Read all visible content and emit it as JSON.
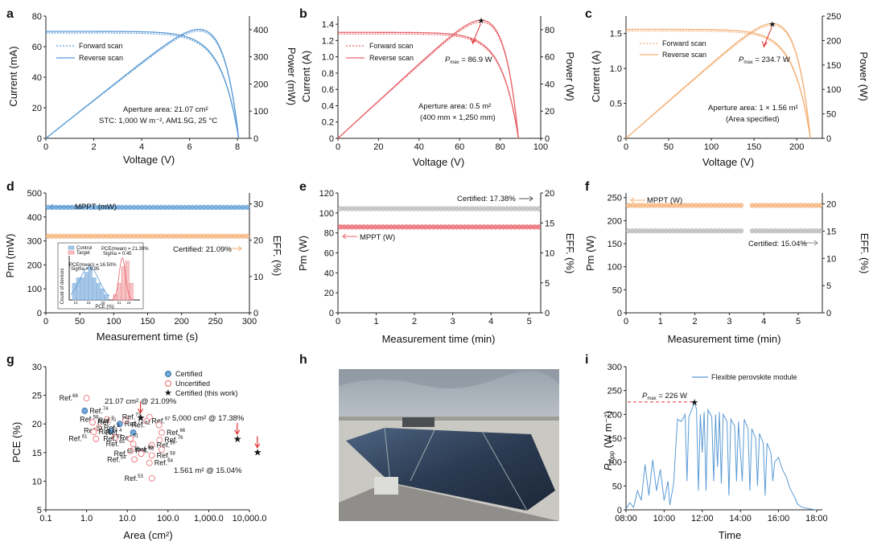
{
  "colors": {
    "blue": "#5b9bd5",
    "red": "#e8636a",
    "orange": "#f4b076",
    "gray": "#b8b8b8",
    "arrow_red": "#e03030",
    "axis": "#222222",
    "cert_fill": "#6fa8dc",
    "sky": "#c6ccd2",
    "wall": "#c7c6c1",
    "panel": "#2e3e54"
  },
  "panels": {
    "a": {
      "letter": "a",
      "xlabel": "Voltage (V)",
      "ylabel": "Current (mA)",
      "y2label": "Power (mW)",
      "xlim": [
        0,
        8.5
      ],
      "ylim": [
        0,
        80
      ],
      "y2lim": [
        0,
        450
      ],
      "xticks": [
        "0",
        "2",
        "4",
        "6",
        "8"
      ],
      "yticks": [
        "0",
        "20",
        "40",
        "60",
        "80"
      ],
      "y2ticks": [
        "0",
        "100",
        "200",
        "300",
        "400"
      ],
      "legend": [
        "Forward scan",
        "Reverse scan"
      ],
      "ann1": "Aperture area: 21.07 cm²",
      "ann2": "STC: 1,000 W m⁻², AM1.5G, 25 °C",
      "isc": 70,
      "voc": 8.05,
      "vmp": 6.8,
      "imp": 59
    },
    "b": {
      "letter": "b",
      "xlabel": "Voltage (V)",
      "ylabel": "Current (A)",
      "y2label": "Power (W)",
      "xlim": [
        0,
        100
      ],
      "ylim": [
        0,
        1.5
      ],
      "y2lim": [
        0,
        90
      ],
      "xticks": [
        "0",
        "20",
        "40",
        "60",
        "80",
        "100"
      ],
      "yticks": [
        "0",
        "0.2",
        "0.4",
        "0.6",
        "0.8",
        "1.0",
        "1.2",
        "1.4"
      ],
      "y2ticks": [
        "0",
        "20",
        "40",
        "60",
        "80"
      ],
      "legend": [
        "Forward scan",
        "Reverse scan"
      ],
      "pmax_p": "P",
      "pmax_sub": "max",
      "pmax_val": " = 86.9 W",
      "ann1": "Aperture area: 0.5 m²",
      "ann2": "(400 mm × 1,250 mm)",
      "isc": 1.3,
      "voc": 89,
      "vmp": 73,
      "pmax": 86.9
    },
    "c": {
      "letter": "c",
      "xlabel": "Voltage (V)",
      "ylabel": "Current (A)",
      "y2label": "Power (W)",
      "xlim": [
        0,
        230
      ],
      "ylim": [
        0,
        1.75
      ],
      "y2lim": [
        0,
        250
      ],
      "xticks": [
        "0",
        "50",
        "100",
        "150",
        "200"
      ],
      "yticks": [
        "0",
        "0.5",
        "1.0",
        "1.5"
      ],
      "y2ticks": [
        "0",
        "50",
        "100",
        "150",
        "200",
        "250"
      ],
      "legend": [
        "Forward scan",
        "Reverse scan"
      ],
      "pmax_p": "P",
      "pmax_sub": "max",
      "pmax_val": " = 234.7 W",
      "ann1": "Aperture area: 1 × 1.56 m²",
      "ann2": "(Area specified)",
      "isc": 1.56,
      "voc": 216,
      "vmp": 170,
      "pmax": 234.7
    },
    "d": {
      "letter": "d",
      "xlabel": "Measurement time (s)",
      "ylabel": "Pm (mW)",
      "y2label": "EFF. (%)",
      "xlim": [
        0,
        300
      ],
      "ylim": [
        0,
        500
      ],
      "y2lim": [
        0,
        33
      ],
      "xticks": [
        "0",
        "50",
        "100",
        "150",
        "200",
        "250",
        "300"
      ],
      "yticks": [
        "0",
        "100",
        "200",
        "300",
        "400",
        "500"
      ],
      "y2ticks": [
        "0",
        "10",
        "20",
        "30"
      ],
      "mppt_label": "MPPT (mW)",
      "cert_label": "Certified: 21.09%",
      "mppt_value": 440,
      "eff_value": 21.09
    },
    "d_inset": {
      "legend": [
        "Control",
        "Target"
      ],
      "stat_target": "PCE(mean) = 21.39%",
      "stat_target2": "Sigma = 0.45",
      "stat_control": "PCE(mean) = 16.50%",
      "stat_control2": "Sigma = 0.95",
      "ylabel": "Count of devices",
      "xlabel": "PCE (%)",
      "xticks": [
        "10",
        "15",
        "20",
        "21",
        "22"
      ],
      "control_counts": [
        3,
        4,
        4,
        5,
        6,
        4,
        3,
        2,
        1
      ],
      "target_counts": [
        1,
        3,
        6,
        7,
        3
      ]
    },
    "e": {
      "letter": "e",
      "xlabel": "Measurement time (min)",
      "ylabel": "Pm (W)",
      "y2label": "EFF. (%)",
      "xlim": [
        0,
        5.3
      ],
      "ylim": [
        0,
        120
      ],
      "y2lim": [
        0,
        20
      ],
      "xticks": [
        "0",
        "1",
        "2",
        "3",
        "4",
        "5"
      ],
      "yticks": [
        "0",
        "20",
        "40",
        "60",
        "80",
        "100",
        "120"
      ],
      "y2ticks": [
        "0",
        "5",
        "10",
        "15",
        "20"
      ],
      "mppt_label": "MPPT (W)",
      "cert_label": "Certified: 17.38%",
      "mppt_value": 86,
      "eff_value": 17.38
    },
    "f": {
      "letter": "f",
      "xlabel": "Measurement time (min)",
      "ylabel": "Pm (W)",
      "y2label": "EFF. (%)",
      "xlim": [
        0,
        5.7
      ],
      "ylim": [
        0,
        260
      ],
      "y2lim": [
        0,
        22
      ],
      "xticks": [
        "0",
        "1",
        "2",
        "3",
        "4",
        "5"
      ],
      "yticks": [
        "0",
        "50",
        "100",
        "150",
        "200",
        "250"
      ],
      "y2ticks": [
        "0",
        "5",
        "10",
        "15",
        "20"
      ],
      "mppt_label": "MPPT (W)",
      "cert_label": "Certified: 15.04%",
      "mppt_value": 233,
      "eff_value": 15.04
    },
    "g": {
      "letter": "g",
      "xlabel": "Area (cm²)",
      "ylabel": "PCE (%)",
      "xticks": [
        "0.1",
        "1.0",
        "10.0",
        "100.0",
        "1,000.0",
        "10,000.0"
      ],
      "yticks": [
        "5",
        "10",
        "15",
        "20",
        "25",
        "30"
      ],
      "legend": [
        "Certified",
        "Uncertified",
        "Certified (this work)"
      ],
      "ann1": "21.07 cm² @ 21.09%",
      "ann2": "5,000 cm² @ 17.38%",
      "ann3": "1.561 m² @ 15.04%",
      "ref_prefix": "Ref.",
      "refs": [
        {
          "n": "68",
          "x": 1.0,
          "y": 24.5,
          "c": false
        },
        {
          "n": "74",
          "x": 0.9,
          "y": 22.3,
          "c": true
        },
        {
          "n": "58",
          "x": 3.2,
          "y": 20.8,
          "c": false
        },
        {
          "n": "70",
          "x": 1.4,
          "y": 20.3,
          "c": false
        },
        {
          "n": "7",
          "x": 9.0,
          "y": 20.6,
          "c": false
        },
        {
          "n": "72",
          "x": 6.5,
          "y": 20.0,
          "c": true
        },
        {
          "n": "73",
          "x": 35,
          "y": 21.2,
          "c": false
        },
        {
          "n": "67",
          "x": 30,
          "y": 20.5,
          "c": false
        },
        {
          "n": "62",
          "x": 60,
          "y": 19.8,
          "c": false
        },
        {
          "n": "3",
          "x": 2.0,
          "y": 19.3,
          "c": false
        },
        {
          "n": "53",
          "x": 4.0,
          "y": 18.8,
          "c": true
        },
        {
          "n": "52",
          "x": 1.5,
          "y": 18.6,
          "c": false
        },
        {
          "n": "4",
          "x": 14,
          "y": 18.5,
          "c": true
        },
        {
          "n": "66",
          "x": 70,
          "y": 18.5,
          "c": false
        },
        {
          "n": "61",
          "x": 1.7,
          "y": 17.4,
          "c": false
        },
        {
          "n": "51",
          "x": 5.0,
          "y": 17.6,
          "c": false
        },
        {
          "n": "57",
          "x": 12,
          "y": 17.4,
          "c": false
        },
        {
          "n": "76",
          "x": 62,
          "y": 17.2,
          "c": false
        },
        {
          "n": "65",
          "x": 14,
          "y": 16.5,
          "c": false
        },
        {
          "n": "59",
          "x": 40,
          "y": 16.3,
          "c": false
        },
        {
          "n": "60",
          "x": 70,
          "y": 15.5,
          "c": false
        },
        {
          "n": "63",
          "x": 12,
          "y": 15.3,
          "c": false
        },
        {
          "n": "55",
          "x": 22,
          "y": 14.8,
          "c": false
        },
        {
          "n": "58",
          "x": 40,
          "y": 14.5,
          "c": false
        },
        {
          "n": "54",
          "x": 15,
          "y": 13.8,
          "c": false
        },
        {
          "n": "64",
          "x": 35,
          "y": 13.2,
          "c": false
        },
        {
          "n": "53",
          "x": 40,
          "y": 10.5,
          "c": false
        }
      ],
      "this_work": [
        {
          "x": 21.07,
          "y": 21.09
        },
        {
          "x": 5000,
          "y": 17.38
        },
        {
          "x": 15610,
          "y": 15.04
        }
      ]
    },
    "h": {
      "letter": "h"
    },
    "i": {
      "letter": "i",
      "xlabel": "Time",
      "ylabel_p": "P",
      "ylabel_sub": "mpp",
      "ylabel_unit": " (W m⁻²)",
      "legend": "Flexible perovskite module",
      "pmax_p": "P",
      "pmax_sub": "max",
      "pmax_val": " = 226 W",
      "xticks": [
        "08:00",
        "10:00",
        "12:00",
        "14:00",
        "16:00",
        "18:00"
      ],
      "yticks": [
        "0",
        "50",
        "100",
        "150",
        "200",
        "250",
        "300"
      ],
      "xlim": [
        8,
        18.3
      ],
      "ylim": [
        0,
        300
      ],
      "series": [
        [
          8.0,
          2
        ],
        [
          8.2,
          15
        ],
        [
          8.4,
          5
        ],
        [
          8.6,
          40
        ],
        [
          8.8,
          20
        ],
        [
          9.0,
          95
        ],
        [
          9.2,
          30
        ],
        [
          9.4,
          105
        ],
        [
          9.6,
          40
        ],
        [
          9.8,
          85
        ],
        [
          10.0,
          20
        ],
        [
          10.2,
          60
        ],
        [
          10.3,
          10
        ],
        [
          10.5,
          55
        ],
        [
          10.7,
          190
        ],
        [
          10.9,
          185
        ],
        [
          11.1,
          200
        ],
        [
          11.2,
          60
        ],
        [
          11.3,
          195
        ],
        [
          11.5,
          215
        ],
        [
          11.6,
          226
        ],
        [
          11.7,
          210
        ],
        [
          11.8,
          40
        ],
        [
          11.9,
          200
        ],
        [
          12.0,
          120
        ],
        [
          12.1,
          205
        ],
        [
          12.2,
          40
        ],
        [
          12.3,
          210
        ],
        [
          12.5,
          195
        ],
        [
          12.6,
          60
        ],
        [
          12.7,
          200
        ],
        [
          12.8,
          90
        ],
        [
          12.9,
          205
        ],
        [
          13.0,
          55
        ],
        [
          13.1,
          200
        ],
        [
          13.3,
          185
        ],
        [
          13.4,
          30
        ],
        [
          13.5,
          190
        ],
        [
          13.7,
          175
        ],
        [
          13.8,
          60
        ],
        [
          13.9,
          185
        ],
        [
          14.1,
          60
        ],
        [
          14.2,
          190
        ],
        [
          14.4,
          170
        ],
        [
          14.5,
          40
        ],
        [
          14.6,
          170
        ],
        [
          14.8,
          150
        ],
        [
          14.9,
          50
        ],
        [
          15.0,
          160
        ],
        [
          15.2,
          140
        ],
        [
          15.3,
          30
        ],
        [
          15.4,
          140
        ],
        [
          15.6,
          120
        ],
        [
          15.7,
          60
        ],
        [
          15.8,
          100
        ],
        [
          16.0,
          110
        ],
        [
          16.2,
          85
        ],
        [
          16.4,
          70
        ],
        [
          16.6,
          45
        ],
        [
          16.8,
          30
        ],
        [
          17.0,
          12
        ],
        [
          17.2,
          6
        ],
        [
          17.5,
          3
        ],
        [
          17.8,
          1
        ],
        [
          18.0,
          0
        ]
      ]
    }
  }
}
